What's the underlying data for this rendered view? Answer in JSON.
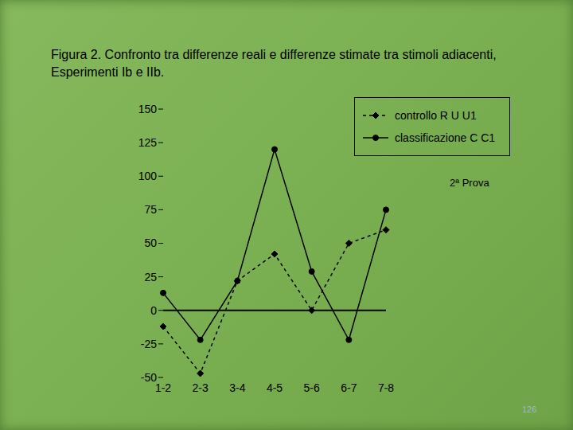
{
  "chart_data": {
    "type": "line",
    "title": "Figura 2. Confronto tra differenze reali e differenze stimate tra stimoli adiacenti, Esperimenti Ib e IIb.",
    "categories": [
      "1-2",
      "2-3",
      "3-4",
      "4-5",
      "5-6",
      "6-7",
      "7-8"
    ],
    "series": [
      {
        "name": "controllo R U U1",
        "color": "#000000",
        "values": [
          -12,
          -47,
          22,
          42,
          0,
          50,
          60
        ],
        "line_style": "dashed",
        "marker": "diamond"
      },
      {
        "name": "classificazione C C1",
        "color": "#000000",
        "values": [
          13,
          -22,
          22,
          120,
          29,
          -22,
          75
        ],
        "line_style": "solid",
        "marker": "circle"
      }
    ],
    "ylim": [
      -50,
      150
    ],
    "yticks": [
      -50,
      -25,
      0,
      25,
      50,
      75,
      100,
      125,
      150
    ],
    "annotations": [
      "2ª Prova",
      "126"
    ],
    "grid": false
  }
}
